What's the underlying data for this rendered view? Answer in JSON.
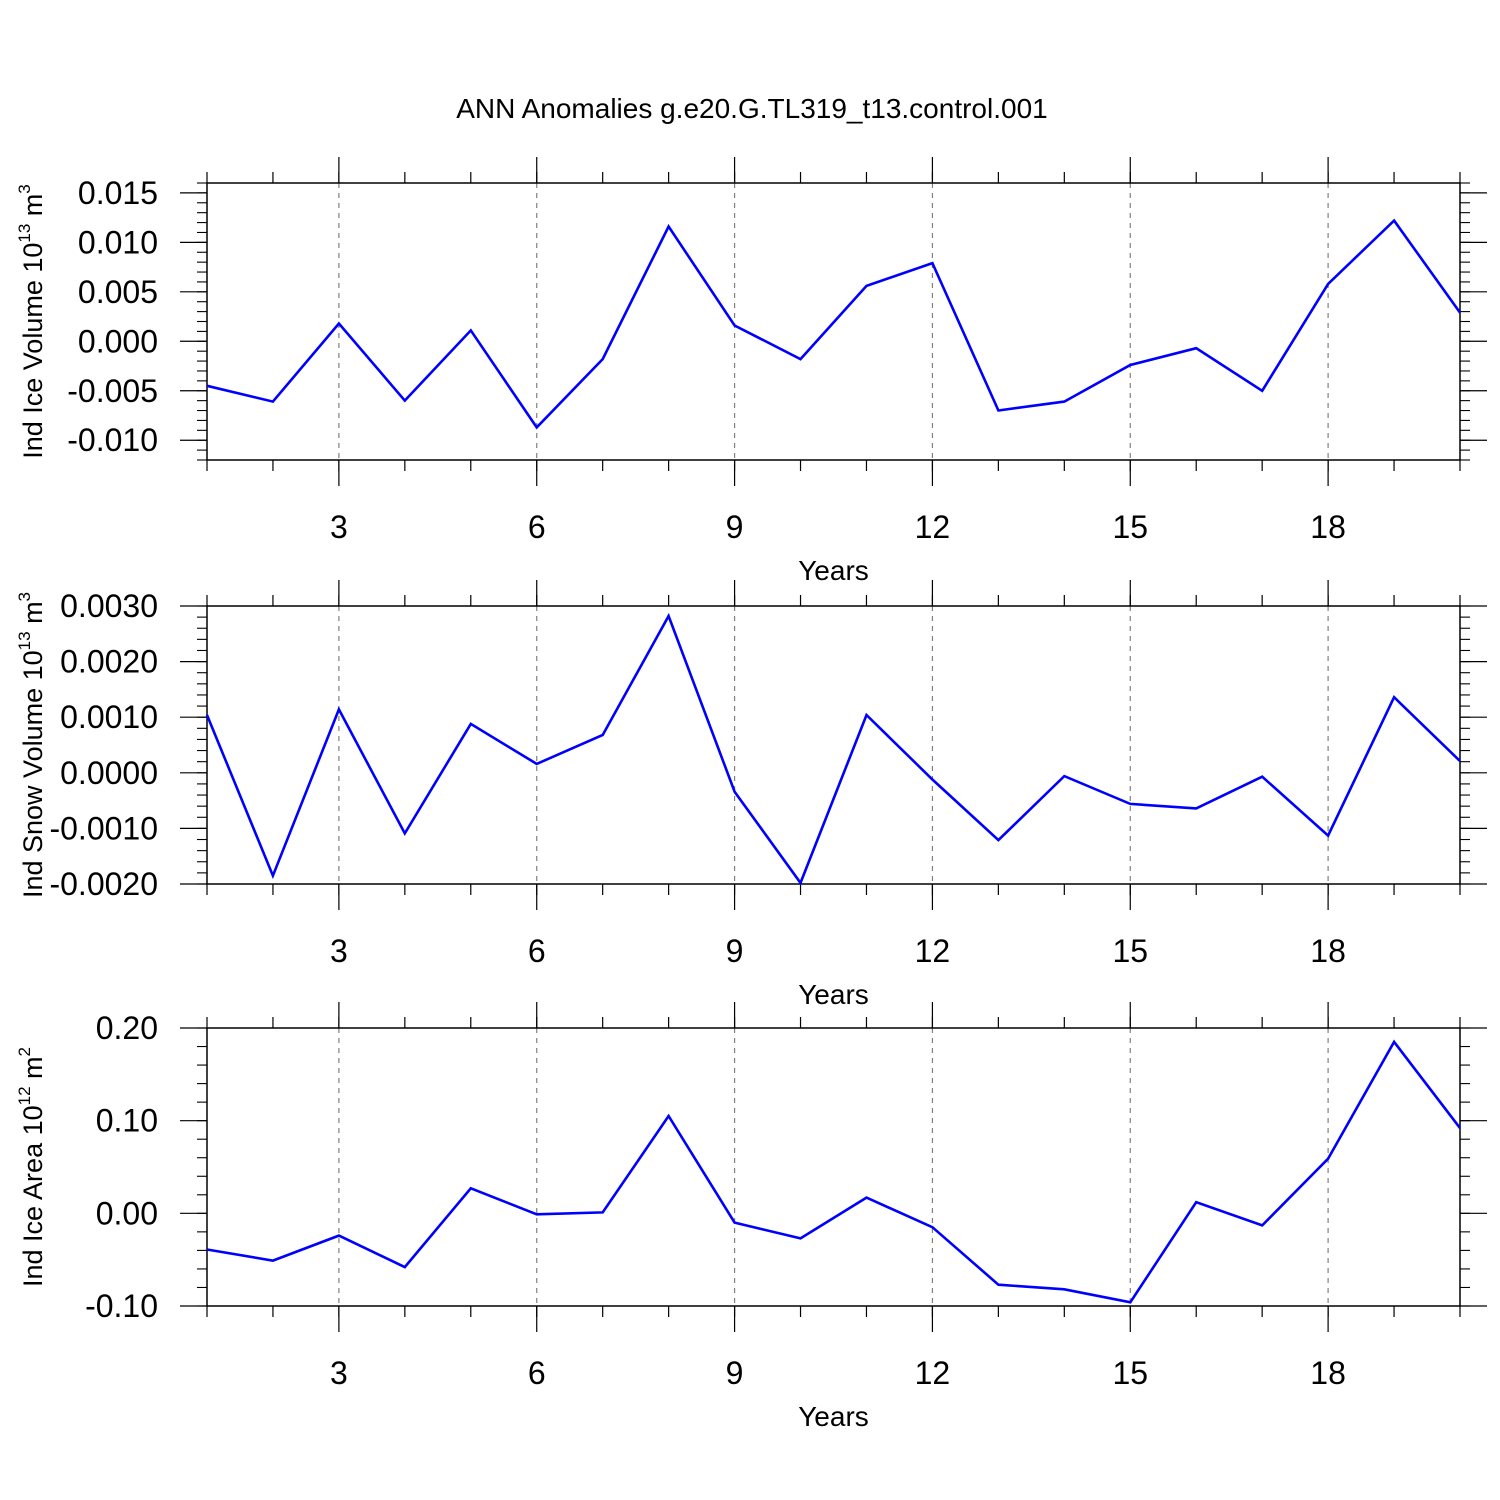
{
  "title": "ANN Anomalies g.e20.G.TL319_t13.control.001",
  "colors": {
    "line": "#0000ff",
    "axes": "#000000",
    "grid": "#808080",
    "background": "#ffffff"
  },
  "chart_data": [
    {
      "type": "line",
      "ylabel_main": "Ind Ice Volume 10",
      "ylabel_exp": "13",
      "ylabel_unit": " m",
      "ylabel_unit_exp": "3",
      "xlabel": "Years",
      "xlim": [
        1,
        20
      ],
      "ylim": [
        -0.012,
        0.016
      ],
      "xticks": [
        3,
        6,
        9,
        12,
        15,
        18
      ],
      "xtick_labels": [
        "3",
        "6",
        "9",
        "12",
        "15",
        "18"
      ],
      "yticks": [
        -0.01,
        -0.005,
        0.0,
        0.005,
        0.01,
        0.015
      ],
      "ytick_labels": [
        "-0.010",
        "-0.005",
        "0.000",
        "0.005",
        "0.010",
        "0.015"
      ],
      "grid_x": true,
      "x": [
        1,
        2,
        3,
        4,
        5,
        6,
        7,
        8,
        9,
        10,
        11,
        12,
        13,
        14,
        15,
        16,
        17,
        18,
        19,
        20
      ],
      "values": [
        -0.0045,
        -0.0061,
        0.0018,
        -0.006,
        0.0011,
        -0.0087,
        -0.0018,
        0.0116,
        0.0016,
        -0.0018,
        0.0056,
        0.0079,
        -0.007,
        -0.0061,
        -0.0024,
        -0.0007,
        -0.005,
        0.0058,
        0.0122,
        0.0029
      ]
    },
    {
      "type": "line",
      "ylabel_main": "Ind Snow Volume 10",
      "ylabel_exp": "13",
      "ylabel_unit": " m",
      "ylabel_unit_exp": "3",
      "xlabel": "Years",
      "xlim": [
        1,
        20
      ],
      "ylim": [
        -0.002,
        0.003
      ],
      "xticks": [
        3,
        6,
        9,
        12,
        15,
        18
      ],
      "xtick_labels": [
        "3",
        "6",
        "9",
        "12",
        "15",
        "18"
      ],
      "yticks": [
        -0.002,
        -0.001,
        0.0,
        0.001,
        0.002,
        0.003
      ],
      "ytick_labels": [
        "-0.0020",
        "-0.0010",
        "0.0000",
        "0.0010",
        "0.0020",
        "0.0030"
      ],
      "grid_x": true,
      "x": [
        1,
        2,
        3,
        4,
        5,
        6,
        7,
        8,
        9,
        10,
        11,
        12,
        13,
        14,
        15,
        16,
        17,
        18,
        19,
        20
      ],
      "values": [
        0.00104,
        -0.00185,
        0.00114,
        -0.00109,
        0.00088,
        0.00016,
        0.00068,
        0.00282,
        -0.00034,
        -0.00198,
        0.00104,
        -0.00012,
        -0.00121,
        -6e-05,
        -0.00056,
        -0.00064,
        -7e-05,
        -0.00113,
        0.00136,
        0.00021
      ]
    },
    {
      "type": "line",
      "ylabel_main": "Ind Ice Area 10",
      "ylabel_exp": "12",
      "ylabel_unit": " m",
      "ylabel_unit_exp": "2",
      "xlabel": "Years",
      "xlim": [
        1,
        20
      ],
      "ylim": [
        -0.1,
        0.2
      ],
      "xticks": [
        3,
        6,
        9,
        12,
        15,
        18
      ],
      "xtick_labels": [
        "3",
        "6",
        "9",
        "12",
        "15",
        "18"
      ],
      "yticks": [
        -0.1,
        0.0,
        0.1,
        0.2
      ],
      "ytick_labels": [
        "-0.10",
        "0.00",
        "0.10",
        "0.20"
      ],
      "grid_x": true,
      "x": [
        1,
        2,
        3,
        4,
        5,
        6,
        7,
        8,
        9,
        10,
        11,
        12,
        13,
        14,
        15,
        16,
        17,
        18,
        19,
        20
      ],
      "values": [
        -0.039,
        -0.051,
        -0.024,
        -0.058,
        0.027,
        -0.001,
        0.001,
        0.105,
        -0.01,
        -0.027,
        0.017,
        -0.015,
        -0.077,
        -0.082,
        -0.096,
        0.012,
        -0.013,
        0.059,
        0.185,
        0.092
      ]
    }
  ]
}
